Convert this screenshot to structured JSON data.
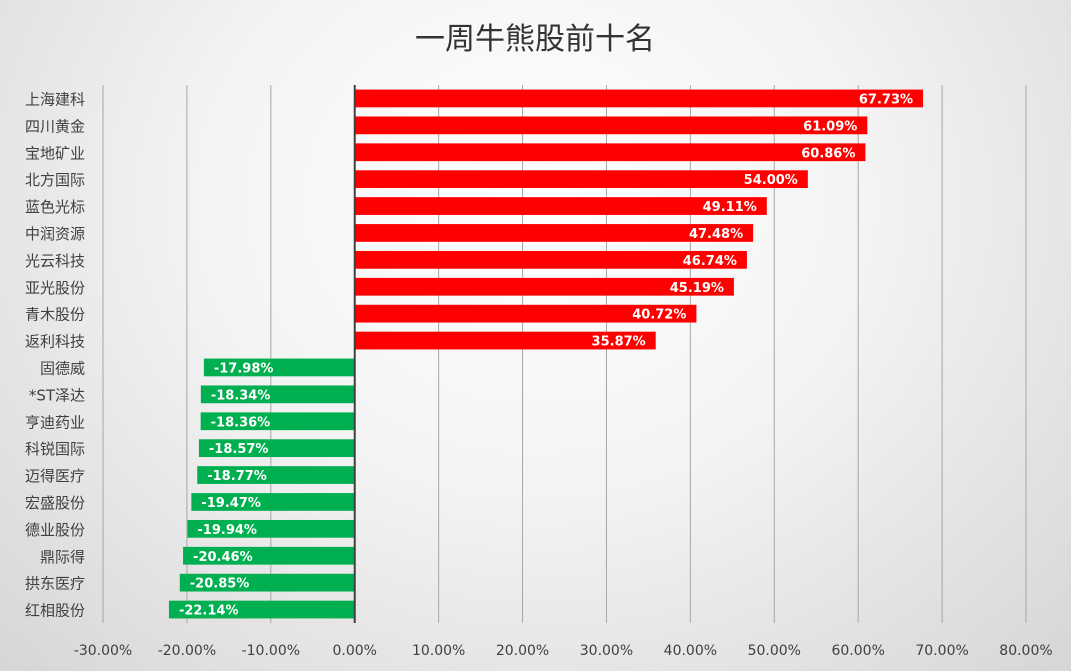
{
  "chart_data": {
    "type": "bar",
    "orientation": "horizontal",
    "title": "一周牛熊股前十名",
    "categories": [
      "上海建科",
      "四川黄金",
      "宝地矿业",
      "北方国际",
      "蓝色光标",
      "中润资源",
      "光云科技",
      "亚光股份",
      "青木股份",
      "返利科技",
      "固德威",
      "*ST泽达",
      "亨迪药业",
      "科锐国际",
      "迈得医疗",
      "宏盛股份",
      "德业股份",
      "鼎际得",
      "拱东医疗",
      "红相股份"
    ],
    "values": [
      67.73,
      61.09,
      60.86,
      54.0,
      49.11,
      47.48,
      46.74,
      45.19,
      40.72,
      35.87,
      -17.98,
      -18.34,
      -18.36,
      -18.57,
      -18.77,
      -19.47,
      -19.94,
      -20.46,
      -20.85,
      -22.14
    ],
    "data_labels": [
      "67.73%",
      "61.09%",
      "60.86%",
      "54.00%",
      "49.11%",
      "47.48%",
      "46.74%",
      "45.19%",
      "40.72%",
      "35.87%",
      "-17.98%",
      "-18.34%",
      "-18.36%",
      "-18.57%",
      "-18.77%",
      "-19.47%",
      "-19.94%",
      "-20.46%",
      "-20.85%",
      "-22.14%"
    ],
    "x_ticks": [
      "-30.00%",
      "-20.00%",
      "-10.00%",
      "0.00%",
      "10.00%",
      "20.00%",
      "30.00%",
      "40.00%",
      "50.00%",
      "60.00%",
      "70.00%",
      "80.00%"
    ],
    "xlim": [
      -30,
      80
    ],
    "xlabel": "",
    "ylabel": "",
    "grid": "vertical",
    "legend": "none",
    "colors": {
      "positive": "#ff0000",
      "negative": "#00b050",
      "axis": "#404040",
      "grid": "#a6a6a6"
    }
  }
}
